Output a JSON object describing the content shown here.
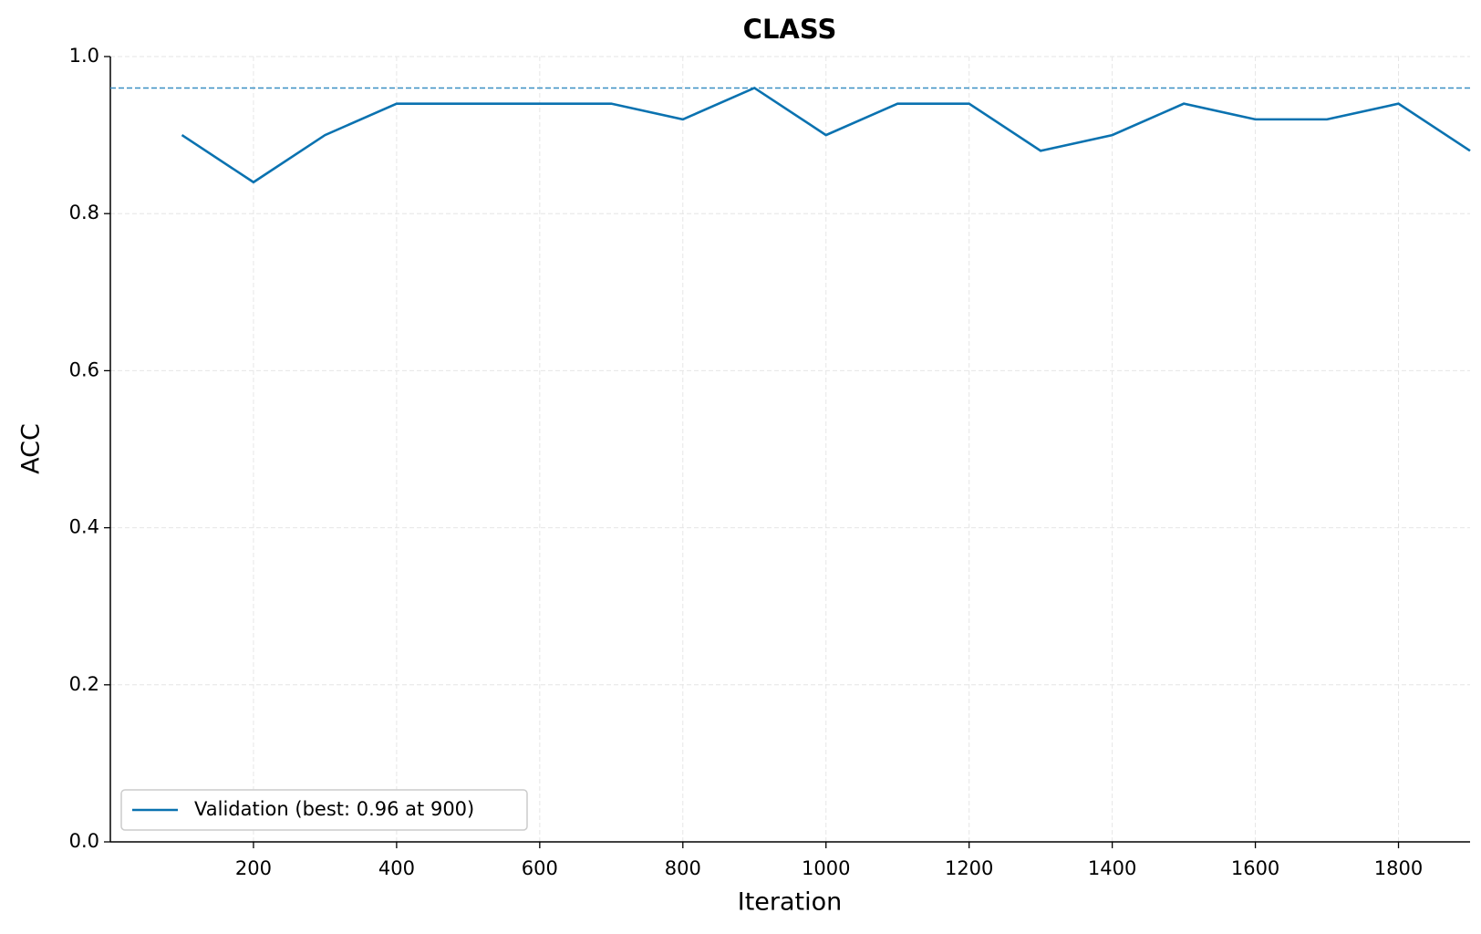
{
  "chart_data": {
    "type": "line",
    "title": "CLASS",
    "x_label": "Iteration",
    "y_label": "ACC",
    "x": [
      100,
      200,
      300,
      400,
      500,
      600,
      700,
      800,
      900,
      1000,
      1100,
      1200,
      1300,
      1400,
      1500,
      1600,
      1700,
      1800,
      1900
    ],
    "series": [
      {
        "name": "Validation (best: 0.96 at 900)",
        "color": "#0a72b0",
        "values": [
          0.9,
          0.84,
          0.9,
          0.94,
          0.94,
          0.94,
          0.94,
          0.92,
          0.96,
          0.9,
          0.94,
          0.94,
          0.88,
          0.9,
          0.94,
          0.92,
          0.92,
          0.94,
          0.88
        ]
      }
    ],
    "reference_line": {
      "y": 0.96,
      "color": "#3a8fc4"
    },
    "xlim": [
      0,
      1900
    ],
    "xticks": [
      200,
      400,
      600,
      800,
      1000,
      1200,
      1400,
      1600,
      1800
    ],
    "ylim": [
      0,
      1
    ],
    "yticks": [
      {
        "value": 0,
        "label": "0.0"
      },
      0.2,
      0.4,
      0.6,
      0.8,
      {
        "value": 1,
        "label": "1.0"
      }
    ],
    "grid": true,
    "legend": "lower left"
  }
}
